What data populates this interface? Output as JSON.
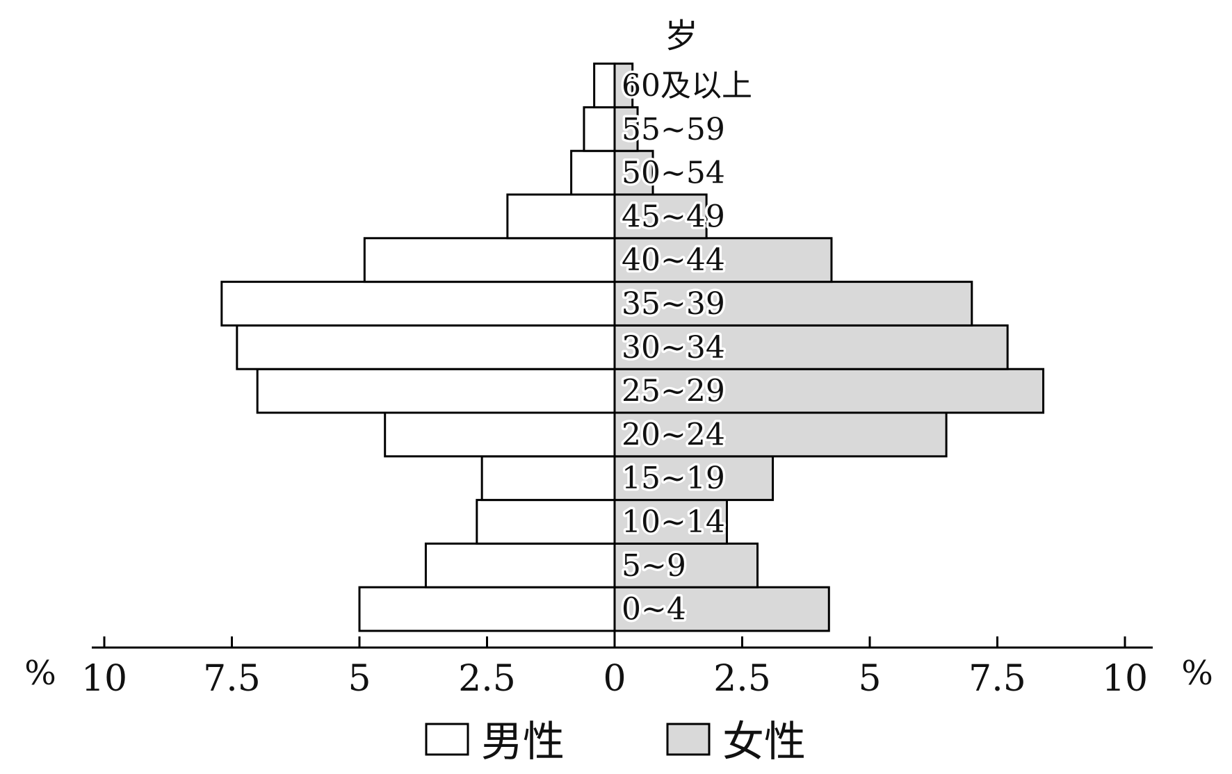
{
  "chart_data": {
    "type": "bar",
    "orientation": "horizontal-pyramid",
    "y_axis_title": "岁",
    "unit_left": "%",
    "unit_right": "%",
    "categories": [
      "0~4",
      "5~9",
      "10~14",
      "15~19",
      "20~24",
      "25~29",
      "30~34",
      "35~39",
      "40~44",
      "45~49",
      "50~54",
      "55~59",
      "60及以上"
    ],
    "series": [
      {
        "name": "男性",
        "side": "left",
        "fill": "#ffffff",
        "values": [
          5.0,
          3.7,
          2.7,
          2.6,
          4.5,
          7.0,
          7.4,
          7.7,
          4.9,
          2.1,
          0.85,
          0.6,
          0.4
        ]
      },
      {
        "name": "女性",
        "side": "right",
        "fill": "#d9d9d9",
        "values": [
          4.2,
          2.8,
          2.2,
          3.1,
          6.5,
          8.4,
          7.7,
          7.0,
          4.25,
          1.8,
          0.75,
          0.45,
          0.35
        ]
      }
    ],
    "x_ticks_left": [
      "10",
      "7.5",
      "5",
      "2.5",
      "0"
    ],
    "x_ticks_right": [
      "2.5",
      "5",
      "7.5",
      "10"
    ],
    "xlim": [
      0,
      10
    ],
    "legend": {
      "position": "bottom",
      "items": [
        "男性",
        "女性"
      ]
    },
    "grid": false
  }
}
